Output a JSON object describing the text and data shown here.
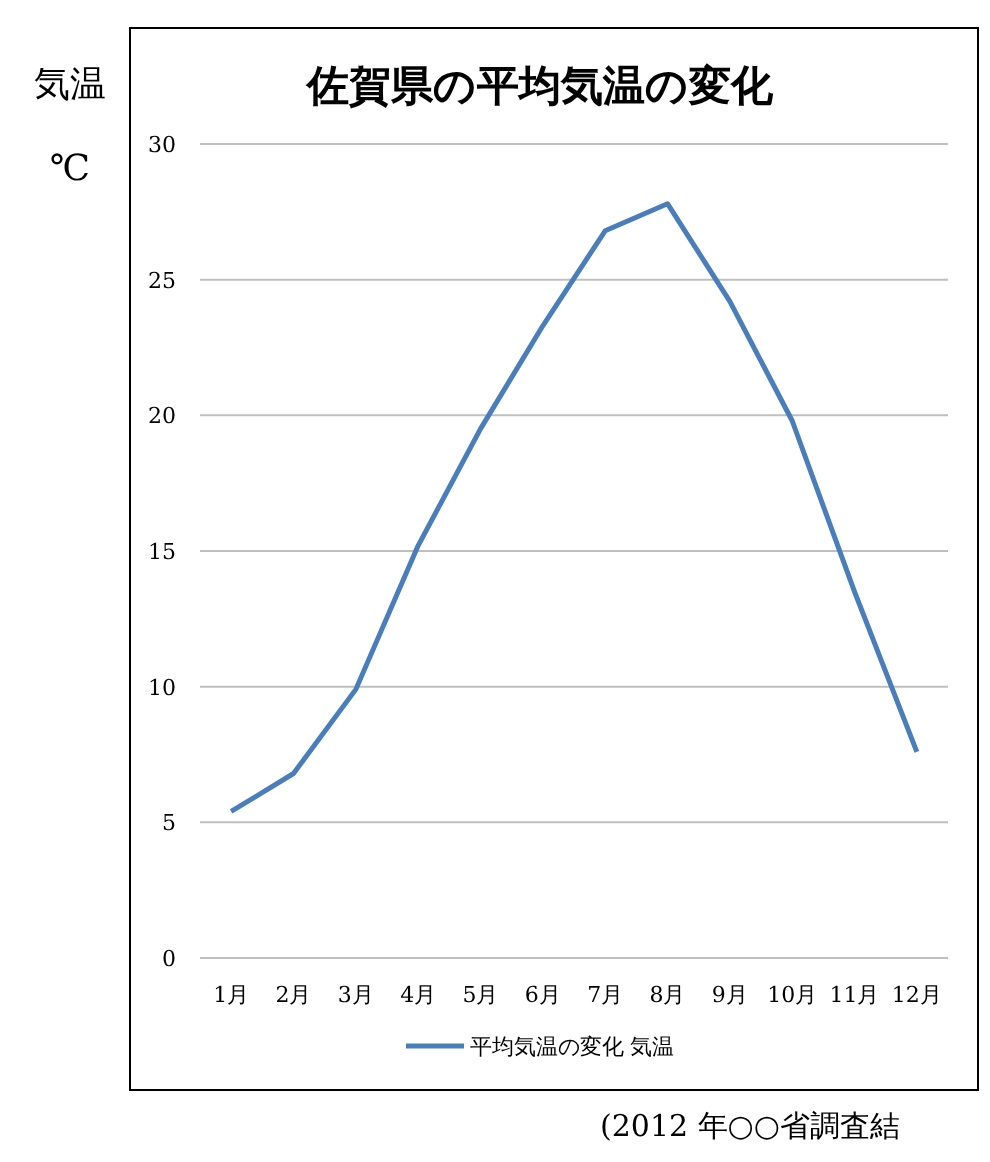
{
  "chart_data": {
    "type": "line",
    "title": "佐賀県の平均気温の変化",
    "ylabel": "気温 ℃",
    "categories": [
      "1月",
      "2月",
      "3月",
      "4月",
      "5月",
      "6月",
      "7月",
      "8月",
      "9月",
      "10月",
      "11月",
      "12月"
    ],
    "series": [
      {
        "name": "平均気温の変化 気温",
        "color": "#4a7ebb",
        "values": [
          5.4,
          6.8,
          9.9,
          15.2,
          19.5,
          23.3,
          26.8,
          27.8,
          24.2,
          19.8,
          13.5,
          7.6
        ]
      }
    ],
    "ylim": [
      0,
      30
    ],
    "yticks": [
      0,
      5,
      10,
      15,
      20,
      25,
      30
    ],
    "grid": "y",
    "legend": "bottom",
    "marker": "none",
    "line_style": "solid",
    "annotations": [
      "(2012 年○○省調査結"
    ]
  }
}
